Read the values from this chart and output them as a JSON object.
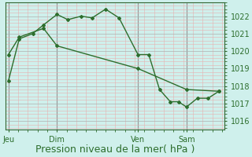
{
  "bg_color": "#cff0ec",
  "line_color": "#2d6e2d",
  "marker_color": "#2d6e2d",
  "grid_major_color": "#b0b0b0",
  "grid_minor_color": "#e8b0b0",
  "vline_color": "#666666",
  "x_tick_labels": [
    "Jeu",
    "Dim",
    "Ven",
    "Sam"
  ],
  "x_ticks_pos": [
    0,
    72,
    192,
    264
  ],
  "ylim": [
    1015.5,
    1022.8
  ],
  "yticks": [
    1016,
    1017,
    1018,
    1019,
    1020,
    1021,
    1022
  ],
  "xlim": [
    -4,
    320
  ],
  "xlabel": "Pression niveau de la mer( hPa )",
  "xlabel_fontsize": 9,
  "tick_fontsize": 7,
  "series1_x": [
    0,
    16,
    36,
    52,
    72,
    88,
    108,
    124,
    144,
    164,
    192,
    208,
    224,
    240,
    252,
    264,
    280,
    296,
    312
  ],
  "series1_y": [
    1018.3,
    1020.7,
    1021.0,
    1021.5,
    1022.1,
    1021.8,
    1022.0,
    1021.9,
    1022.4,
    1021.9,
    1019.8,
    1019.8,
    1017.8,
    1017.1,
    1017.1,
    1016.8,
    1017.3,
    1017.3,
    1017.7
  ],
  "series2_x": [
    0,
    16,
    52,
    72,
    192,
    264,
    312
  ],
  "series2_y": [
    1019.8,
    1020.8,
    1021.3,
    1020.3,
    1019.0,
    1017.8,
    1017.7
  ]
}
